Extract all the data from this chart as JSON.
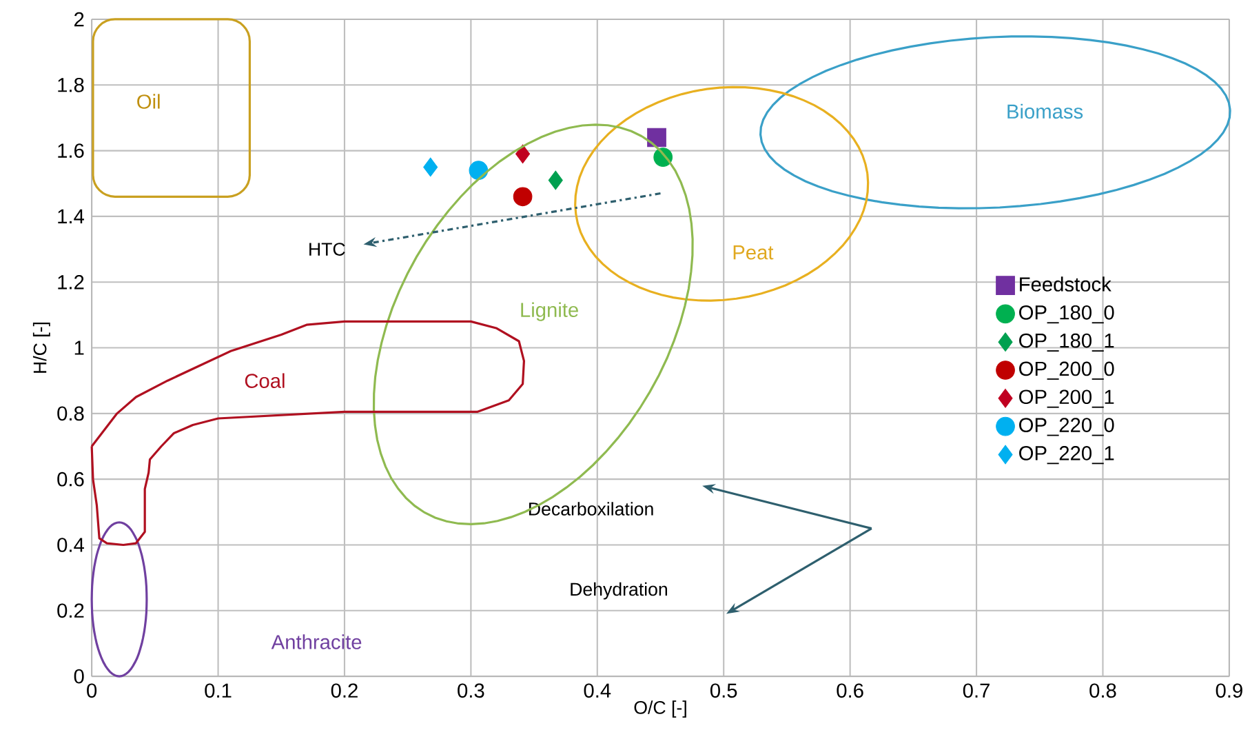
{
  "chart_data": {
    "type": "scatter",
    "xlabel": "O/C [-]",
    "ylabel": "H/C [-]",
    "xlim": [
      0,
      0.9
    ],
    "ylim": [
      0,
      2
    ],
    "xticks": [
      0,
      0.1,
      0.2,
      0.3,
      0.4,
      0.5,
      0.6,
      0.7,
      0.8,
      0.9
    ],
    "yticks": [
      0,
      0.2,
      0.4,
      0.6,
      0.8,
      1,
      1.2,
      1.4,
      1.6,
      1.8,
      2
    ],
    "grid": true,
    "legend": "right",
    "series": [
      {
        "name": "Feedstock",
        "color": "#7030a0",
        "marker": "square",
        "x": [
          0.447
        ],
        "values": [
          1.64
        ]
      },
      {
        "name": "OP_180_0",
        "color": "#00b050",
        "marker": "circle",
        "x": [
          0.452
        ],
        "values": [
          1.58
        ]
      },
      {
        "name": "OP_180_1",
        "color": "#00a050",
        "marker": "diamond",
        "x": [
          0.367
        ],
        "values": [
          1.51
        ]
      },
      {
        "name": "OP_200_0",
        "color": "#c00000",
        "marker": "circle",
        "x": [
          0.341
        ],
        "values": [
          1.46
        ]
      },
      {
        "name": "OP_200_1",
        "color": "#c00020",
        "marker": "diamond",
        "x": [
          0.341
        ],
        "values": [
          1.59
        ]
      },
      {
        "name": "OP_220_0",
        "color": "#00b0f0",
        "marker": "circle",
        "x": [
          0.306
        ],
        "values": [
          1.54
        ]
      },
      {
        "name": "OP_220_1",
        "color": "#00b0f0",
        "marker": "diamond",
        "x": [
          0.268
        ],
        "values": [
          1.55
        ]
      }
    ],
    "annotations": [
      "Oil",
      "Biomass",
      "Peat",
      "Lignite",
      "Coal",
      "Anthracite",
      "HTC",
      "Decarboxilation",
      "Dehydration"
    ]
  }
}
